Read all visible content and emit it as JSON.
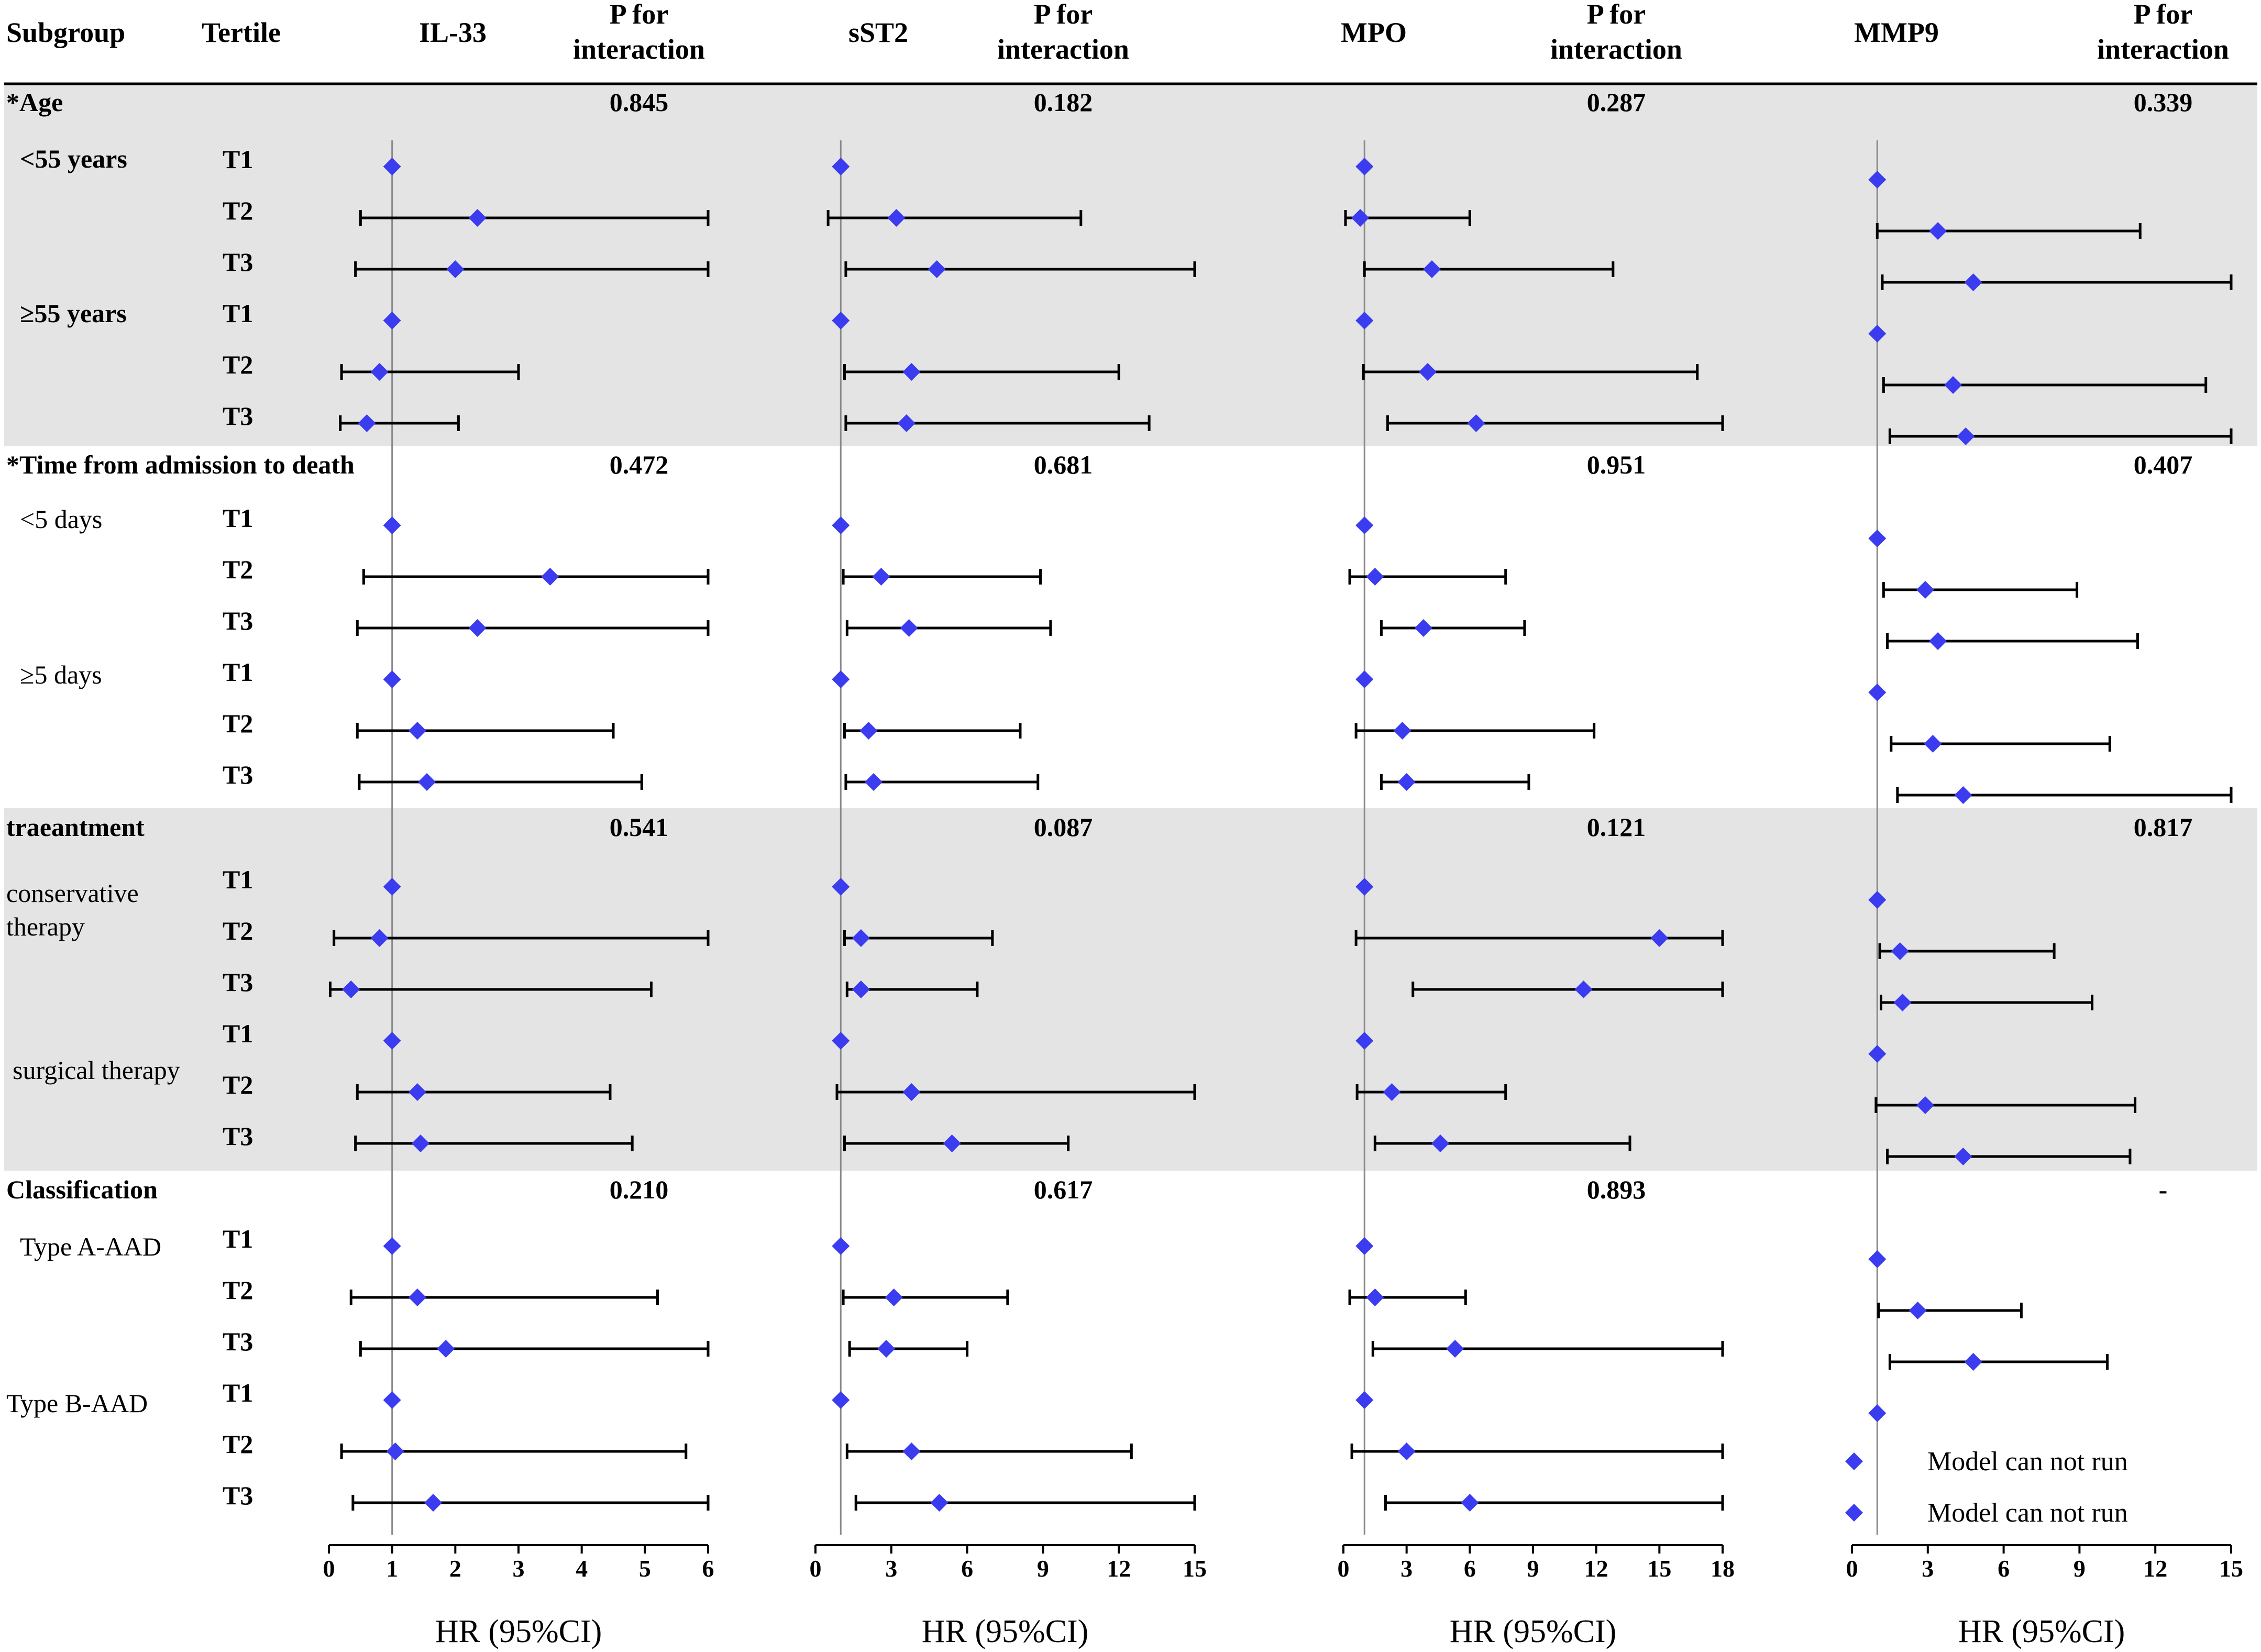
{
  "headers": {
    "subgroup": "Subgroup",
    "tertile": "Tertile",
    "p_line1": "P for",
    "p_line2": "interaction",
    "panels": [
      "IL-33",
      "sST2",
      "MPO",
      "MMP9"
    ]
  },
  "sections": [
    {
      "title": "*Age",
      "shaded": true,
      "p_values": [
        "0.845",
        "0.182",
        "0.287",
        "0.339"
      ],
      "subgroups": [
        {
          "label": [
            "<55 years"
          ],
          "bold": true,
          "tertiles": [
            "T1",
            "T2",
            "T3"
          ]
        },
        {
          "label": [
            "≥55 years"
          ],
          "bold": true,
          "tertiles": [
            "T1",
            "T2",
            "T3"
          ]
        }
      ]
    },
    {
      "title": "*Time from admission to death",
      "shaded": false,
      "p_values": [
        "0.472",
        "0.681",
        "0.951",
        "0.407"
      ],
      "subgroups": [
        {
          "label": [
            "<5 days"
          ],
          "bold": false,
          "tertiles": [
            "T1",
            "T2",
            "T3"
          ]
        },
        {
          "label": [
            "≥5 days"
          ],
          "bold": false,
          "tertiles": [
            "T1",
            "T2",
            "T3"
          ]
        }
      ]
    },
    {
      "title": "traeantment",
      "shaded": true,
      "p_values": [
        "0.541",
        "0.087",
        "0.121",
        "0.817"
      ],
      "subgroups": [
        {
          "label": [
            "conservative",
            "therapy"
          ],
          "bold": false,
          "tertiles": [
            "T1",
            "T2",
            "T3"
          ]
        },
        {
          "label": [
            "surgical therapy"
          ],
          "bold": false,
          "tertiles": [
            "T1",
            "T2",
            "T3"
          ]
        }
      ]
    },
    {
      "title": "Classification",
      "shaded": false,
      "p_values": [
        "0.210",
        "0.617",
        "0.893",
        "-"
      ],
      "subgroups": [
        {
          "label": [
            "Type A-AAD"
          ],
          "bold": false,
          "tertiles": [
            "T1",
            "T2",
            "T3"
          ]
        },
        {
          "label": [
            "Type B-AAD"
          ],
          "bold": false,
          "tertiles": [
            "T1",
            "T2",
            "T3"
          ]
        }
      ]
    }
  ],
  "chart_data": {
    "type": "forest",
    "colors": {
      "point": "#3b3bf0",
      "line": "#000000",
      "shade": "#e4e4e4",
      "ref": "#8a8a8a"
    },
    "panels": [
      {
        "name": "IL-33",
        "xlim": [
          0,
          6
        ],
        "ticks": [
          0,
          1,
          2,
          3,
          4,
          5,
          6
        ],
        "ref": 1,
        "xlabel": "HR (95%CI)",
        "rows": [
          [
            1,
            null,
            null
          ],
          [
            2.35,
            0.5,
            6
          ],
          [
            2.0,
            0.42,
            6
          ],
          [
            1,
            null,
            null
          ],
          [
            0.8,
            0.2,
            3.0
          ],
          [
            0.6,
            0.18,
            2.05
          ],
          [
            1,
            null,
            null
          ],
          [
            3.5,
            0.55,
            6
          ],
          [
            2.35,
            0.45,
            6
          ],
          [
            1,
            null,
            null
          ],
          [
            1.4,
            0.45,
            4.5
          ],
          [
            1.55,
            0.48,
            4.95
          ],
          [
            1,
            null,
            null
          ],
          [
            0.8,
            0.08,
            6
          ],
          [
            0.35,
            0.02,
            5.1
          ],
          [
            1,
            null,
            null
          ],
          [
            1.4,
            0.45,
            4.45
          ],
          [
            1.45,
            0.42,
            4.8
          ],
          [
            1,
            null,
            null
          ],
          [
            1.4,
            0.35,
            5.2
          ],
          [
            1.85,
            0.5,
            6
          ],
          [
            1,
            null,
            null
          ],
          [
            1.05,
            0.2,
            5.65
          ],
          [
            1.65,
            0.38,
            6
          ]
        ]
      },
      {
        "name": "sST2",
        "xlim": [
          0,
          15
        ],
        "ticks": [
          0,
          3,
          6,
          9,
          12,
          15
        ],
        "ref": 1,
        "xlabel": "HR (95%CI)",
        "rows": [
          [
            1,
            null,
            null
          ],
          [
            3.2,
            0.5,
            10.5
          ],
          [
            4.8,
            1.2,
            15
          ],
          [
            1,
            null,
            null
          ],
          [
            3.8,
            1.15,
            12
          ],
          [
            3.6,
            1.2,
            13.2
          ],
          [
            1,
            null,
            null
          ],
          [
            2.6,
            1.1,
            8.9
          ],
          [
            3.7,
            1.25,
            9.3
          ],
          [
            1,
            null,
            null
          ],
          [
            2.1,
            1.15,
            8.1
          ],
          [
            2.3,
            1.2,
            8.8
          ],
          [
            1,
            null,
            null
          ],
          [
            1.8,
            1.15,
            7.0
          ],
          [
            1.8,
            1.25,
            6.4
          ],
          [
            1,
            null,
            null
          ],
          [
            3.8,
            0.85,
            15
          ],
          [
            5.4,
            1.15,
            10.0
          ],
          [
            1,
            null,
            null
          ],
          [
            3.1,
            1.1,
            7.6
          ],
          [
            2.8,
            1.35,
            6.0
          ],
          [
            1,
            null,
            null
          ],
          [
            3.8,
            1.25,
            12.5
          ],
          [
            4.9,
            1.6,
            15
          ]
        ]
      },
      {
        "name": "MPO",
        "xlim": [
          0,
          18
        ],
        "ticks": [
          0,
          3,
          6,
          9,
          12,
          15,
          18
        ],
        "ref": 1,
        "xlabel": "HR (95%CI)",
        "rows": [
          [
            1,
            null,
            null
          ],
          [
            0.8,
            0.1,
            6.0
          ],
          [
            4.2,
            1.0,
            12.8
          ],
          [
            1,
            null,
            null
          ],
          [
            4.0,
            0.95,
            16.8
          ],
          [
            6.3,
            2.1,
            18
          ],
          [
            1,
            null,
            null
          ],
          [
            1.5,
            0.3,
            7.7
          ],
          [
            3.8,
            1.8,
            8.6
          ],
          [
            1,
            null,
            null
          ],
          [
            2.8,
            0.6,
            11.9
          ],
          [
            3.0,
            1.8,
            8.8
          ],
          [
            1,
            null,
            null
          ],
          [
            15.0,
            0.6,
            18
          ],
          [
            11.4,
            3.3,
            18
          ],
          [
            1,
            null,
            null
          ],
          [
            2.3,
            0.65,
            7.7
          ],
          [
            4.6,
            1.5,
            13.6
          ],
          [
            1,
            null,
            null
          ],
          [
            1.5,
            0.3,
            5.8
          ],
          [
            5.3,
            1.4,
            18
          ],
          [
            1,
            null,
            null
          ],
          [
            3.0,
            0.4,
            18
          ],
          [
            6.0,
            2.0,
            18
          ]
        ]
      },
      {
        "name": "MMP9",
        "xlim": [
          0,
          15
        ],
        "ticks": [
          0,
          3,
          6,
          9,
          12,
          15
        ],
        "ref": 1,
        "xlabel": "HR (95%CI)",
        "rows": [
          [
            1,
            null,
            null
          ],
          [
            3.4,
            1.0,
            11.4
          ],
          [
            4.8,
            1.2,
            15
          ],
          [
            1,
            null,
            null
          ],
          [
            4.0,
            1.25,
            14.0
          ],
          [
            4.5,
            1.5,
            15
          ],
          [
            1,
            null,
            null
          ],
          [
            2.9,
            1.25,
            8.9
          ],
          [
            3.4,
            1.4,
            11.3
          ],
          [
            1,
            null,
            null
          ],
          [
            3.2,
            1.55,
            10.2
          ],
          [
            4.4,
            1.8,
            15
          ],
          [
            1,
            null,
            null
          ],
          [
            1.9,
            1.1,
            8.0
          ],
          [
            2.0,
            1.15,
            9.5
          ],
          [
            1,
            null,
            null
          ],
          [
            2.9,
            0.95,
            11.2
          ],
          [
            4.4,
            1.4,
            11.0
          ],
          [
            1,
            null,
            null
          ],
          [
            2.6,
            1.05,
            6.7
          ],
          [
            4.8,
            1.5,
            10.1
          ],
          [
            1,
            null,
            null
          ]
        ]
      }
    ],
    "legend": [
      "Model can not run",
      "Model can not run"
    ]
  }
}
